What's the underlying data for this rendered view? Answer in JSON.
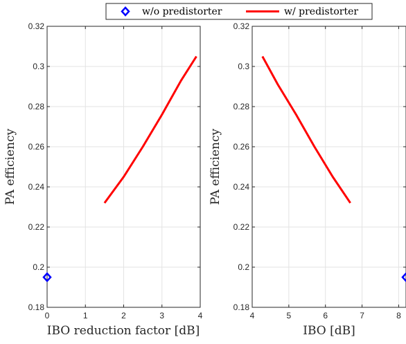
{
  "colors": {
    "without": "#0000ff",
    "with": "#ff0000"
  },
  "legend": {
    "entries": [
      {
        "label": "w/o predistorter",
        "marker": "diamond",
        "color": "#0000ff"
      },
      {
        "label": "w/ predistorter",
        "marker": "line",
        "color": "#ff0000"
      }
    ],
    "placement": "top-center, outside axes"
  },
  "chart_data": [
    {
      "type": "line",
      "xlabel": "IBO reduction factor [dB]",
      "ylabel": "PA efficiency",
      "xlim": [
        0,
        4
      ],
      "ylim": [
        0.18,
        0.32
      ],
      "xticks": [
        "0",
        "1",
        "2",
        "3",
        "4"
      ],
      "yticks": [
        "0.18",
        "0.2",
        "0.22",
        "0.24",
        "0.26",
        "0.28",
        "0.3",
        "0.32"
      ],
      "grid": true,
      "series": [
        {
          "name": "w/o predistorter",
          "marker": "diamond",
          "color": "#0000ff",
          "x": [
            0
          ],
          "y": [
            0.195
          ]
        },
        {
          "name": "w/ predistorter",
          "marker": "none",
          "color": "#ff0000",
          "x": [
            1.5,
            2.0,
            2.5,
            3.0,
            3.5,
            3.9
          ],
          "y": [
            0.232,
            0.245,
            0.26,
            0.276,
            0.293,
            0.305
          ]
        }
      ]
    },
    {
      "type": "line",
      "xlabel": "IBO [dB]",
      "ylabel": "PA efficiency",
      "xlim": [
        4,
        8.2
      ],
      "ylim": [
        0.18,
        0.32
      ],
      "xticks": [
        "4",
        "5",
        "6",
        "7",
        "8"
      ],
      "yticks": [
        "0.18",
        "0.2",
        "0.22",
        "0.24",
        "0.26",
        "0.28",
        "0.3",
        "0.32"
      ],
      "grid": true,
      "series": [
        {
          "name": "w/o predistorter",
          "marker": "diamond",
          "color": "#0000ff",
          "x": [
            8.2
          ],
          "y": [
            0.195
          ]
        },
        {
          "name": "w/ predistorter",
          "marker": "none",
          "color": "#ff0000",
          "x": [
            4.28,
            4.7,
            5.2,
            5.7,
            6.2,
            6.68
          ],
          "y": [
            0.305,
            0.291,
            0.276,
            0.26,
            0.245,
            0.232
          ]
        }
      ]
    }
  ]
}
